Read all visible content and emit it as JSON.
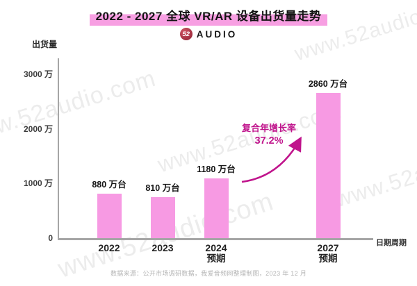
{
  "header": {
    "title": "2022 - 2027 全球 VR/AR 设备出货量走势",
    "logo_badge": "52",
    "logo_text": "AUDIO"
  },
  "chart_data": {
    "type": "bar",
    "title": "2022 - 2027 全球 VR/AR 设备出货量走势",
    "ylabel": "出货量",
    "xlabel": "日期周期",
    "unit": "万台",
    "categories": [
      "2022",
      "2023",
      "2024 预期",
      "2027 预期"
    ],
    "x_labels": [
      {
        "year": "2022",
        "note": ""
      },
      {
        "year": "2023",
        "note": ""
      },
      {
        "year": "2024",
        "note": "预期"
      },
      {
        "year": "2027",
        "note": "预期"
      }
    ],
    "values": [
      880,
      810,
      1180,
      2860
    ],
    "value_labels": [
      "880 万台",
      "810 万台",
      "1180 万台",
      "2860 万台"
    ],
    "y_ticks": [
      {
        "label": "0",
        "value": 0
      },
      {
        "label": "1000 万",
        "value": 1000
      },
      {
        "label": "2000 万",
        "value": 2000
      },
      {
        "label": "3000 万",
        "value": 3000
      }
    ],
    "ylim": [
      0,
      3300
    ],
    "grid": false,
    "legend": false,
    "annotation": {
      "line1": "复合年增长率",
      "line2": "37.2%"
    }
  },
  "colors": {
    "bar": "#F79AE3",
    "title_highlight": "#F79FE2",
    "annotation": "#C0148C",
    "axis": "#A6A6A6",
    "logo_badge": "#B12B3E"
  },
  "watermark": {
    "text": "www.52audio.com"
  },
  "footer": {
    "source": "数据来源：公开市场调研数据，我爱音频网整理制图，2023 年 12 月"
  }
}
